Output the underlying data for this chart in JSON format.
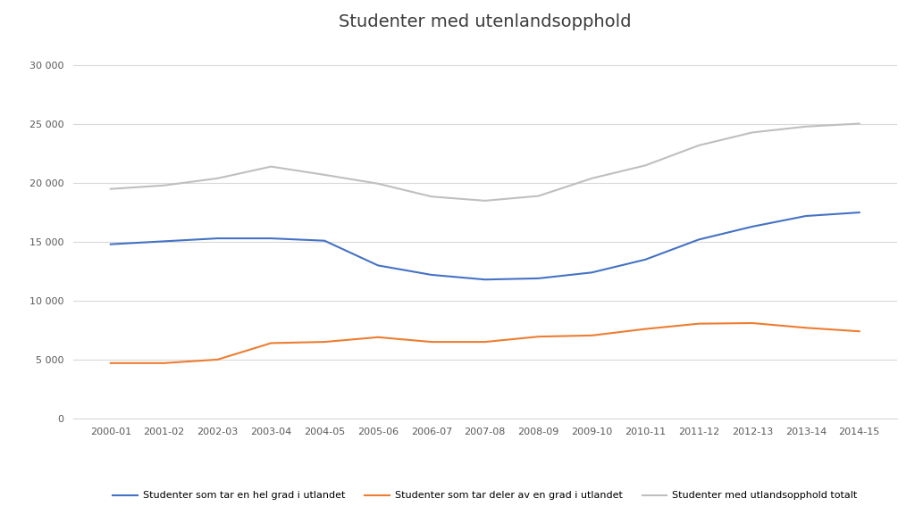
{
  "title": "Studenter med utenlandsopphold",
  "x_labels": [
    "2000-01",
    "2001-02",
    "2002-03",
    "2003-04",
    "2004-05",
    "2005-06",
    "2006-07",
    "2007-08",
    "2008-09",
    "2009-10",
    "2010-11",
    "2011-12",
    "2012-13",
    "2013-14",
    "2014-15"
  ],
  "series": [
    {
      "name": "Studenter som tar en hel grad i utlandet",
      "color": "#4472C4",
      "values": [
        14800,
        15050,
        15300,
        15300,
        15100,
        13000,
        12200,
        11800,
        11900,
        12400,
        13500,
        15200,
        16300,
        17200,
        17500
      ]
    },
    {
      "name": "Studenter som tar deler av en grad i utlandet",
      "color": "#ED7D31",
      "values": [
        4700,
        4700,
        5000,
        6400,
        6500,
        6900,
        6500,
        6500,
        6950,
        7050,
        7600,
        8050,
        8100,
        7700,
        7400
      ]
    },
    {
      "name": "Studenter med utlandsopphold totalt",
      "color": "#BFBFBF",
      "values": [
        19500,
        19800,
        20400,
        21400,
        20700,
        19950,
        18850,
        18500,
        18900,
        20400,
        21500,
        23200,
        24300,
        24800,
        25050
      ]
    }
  ],
  "ylim": [
    0,
    32000
  ],
  "yticks": [
    0,
    5000,
    10000,
    15000,
    20000,
    25000,
    30000
  ],
  "background_color": "#ffffff",
  "title_fontsize": 14,
  "figsize": [
    10.24,
    5.86
  ],
  "dpi": 100
}
